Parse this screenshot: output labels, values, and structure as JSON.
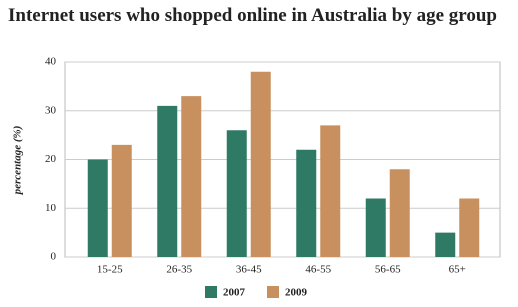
{
  "chart_data": {
    "type": "grouped_bar",
    "title": "Internet users who shopped online in Australia by age group",
    "y_label": "percentage (%)",
    "categories": [
      "15-25",
      "26-35",
      "36-45",
      "46-55",
      "56-65",
      "65+"
    ],
    "series": [
      {
        "name": "2007",
        "color": "#2e7a65",
        "values": [
          20,
          31,
          26,
          22,
          12,
          5
        ]
      },
      {
        "name": "2009",
        "color": "#c8905e",
        "values": [
          23,
          33,
          38,
          27,
          18,
          12
        ]
      }
    ],
    "ylim": [
      0,
      40
    ],
    "yticks": [
      0,
      10,
      20,
      30,
      40
    ],
    "grid": true
  }
}
